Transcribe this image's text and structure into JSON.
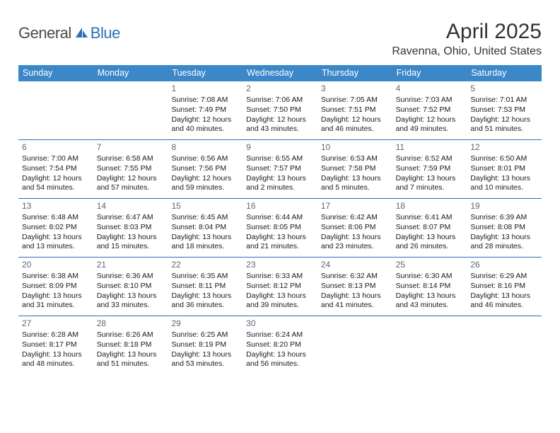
{
  "brand": {
    "text1": "General",
    "text2": "Blue"
  },
  "title": "April 2025",
  "location": "Ravenna, Ohio, United States",
  "header_bg": "#3b87c8",
  "rule_color": "#2d6fb7",
  "day_names": [
    "Sunday",
    "Monday",
    "Tuesday",
    "Wednesday",
    "Thursday",
    "Friday",
    "Saturday"
  ],
  "weeks": [
    [
      null,
      null,
      {
        "n": "1",
        "sr": "7:08 AM",
        "ss": "7:49 PM",
        "dl": "12 hours and 40 minutes."
      },
      {
        "n": "2",
        "sr": "7:06 AM",
        "ss": "7:50 PM",
        "dl": "12 hours and 43 minutes."
      },
      {
        "n": "3",
        "sr": "7:05 AM",
        "ss": "7:51 PM",
        "dl": "12 hours and 46 minutes."
      },
      {
        "n": "4",
        "sr": "7:03 AM",
        "ss": "7:52 PM",
        "dl": "12 hours and 49 minutes."
      },
      {
        "n": "5",
        "sr": "7:01 AM",
        "ss": "7:53 PM",
        "dl": "12 hours and 51 minutes."
      }
    ],
    [
      {
        "n": "6",
        "sr": "7:00 AM",
        "ss": "7:54 PM",
        "dl": "12 hours and 54 minutes."
      },
      {
        "n": "7",
        "sr": "6:58 AM",
        "ss": "7:55 PM",
        "dl": "12 hours and 57 minutes."
      },
      {
        "n": "8",
        "sr": "6:56 AM",
        "ss": "7:56 PM",
        "dl": "12 hours and 59 minutes."
      },
      {
        "n": "9",
        "sr": "6:55 AM",
        "ss": "7:57 PM",
        "dl": "13 hours and 2 minutes."
      },
      {
        "n": "10",
        "sr": "6:53 AM",
        "ss": "7:58 PM",
        "dl": "13 hours and 5 minutes."
      },
      {
        "n": "11",
        "sr": "6:52 AM",
        "ss": "7:59 PM",
        "dl": "13 hours and 7 minutes."
      },
      {
        "n": "12",
        "sr": "6:50 AM",
        "ss": "8:01 PM",
        "dl": "13 hours and 10 minutes."
      }
    ],
    [
      {
        "n": "13",
        "sr": "6:48 AM",
        "ss": "8:02 PM",
        "dl": "13 hours and 13 minutes."
      },
      {
        "n": "14",
        "sr": "6:47 AM",
        "ss": "8:03 PM",
        "dl": "13 hours and 15 minutes."
      },
      {
        "n": "15",
        "sr": "6:45 AM",
        "ss": "8:04 PM",
        "dl": "13 hours and 18 minutes."
      },
      {
        "n": "16",
        "sr": "6:44 AM",
        "ss": "8:05 PM",
        "dl": "13 hours and 21 minutes."
      },
      {
        "n": "17",
        "sr": "6:42 AM",
        "ss": "8:06 PM",
        "dl": "13 hours and 23 minutes."
      },
      {
        "n": "18",
        "sr": "6:41 AM",
        "ss": "8:07 PM",
        "dl": "13 hours and 26 minutes."
      },
      {
        "n": "19",
        "sr": "6:39 AM",
        "ss": "8:08 PM",
        "dl": "13 hours and 28 minutes."
      }
    ],
    [
      {
        "n": "20",
        "sr": "6:38 AM",
        "ss": "8:09 PM",
        "dl": "13 hours and 31 minutes."
      },
      {
        "n": "21",
        "sr": "6:36 AM",
        "ss": "8:10 PM",
        "dl": "13 hours and 33 minutes."
      },
      {
        "n": "22",
        "sr": "6:35 AM",
        "ss": "8:11 PM",
        "dl": "13 hours and 36 minutes."
      },
      {
        "n": "23",
        "sr": "6:33 AM",
        "ss": "8:12 PM",
        "dl": "13 hours and 39 minutes."
      },
      {
        "n": "24",
        "sr": "6:32 AM",
        "ss": "8:13 PM",
        "dl": "13 hours and 41 minutes."
      },
      {
        "n": "25",
        "sr": "6:30 AM",
        "ss": "8:14 PM",
        "dl": "13 hours and 43 minutes."
      },
      {
        "n": "26",
        "sr": "6:29 AM",
        "ss": "8:16 PM",
        "dl": "13 hours and 46 minutes."
      }
    ],
    [
      {
        "n": "27",
        "sr": "6:28 AM",
        "ss": "8:17 PM",
        "dl": "13 hours and 48 minutes."
      },
      {
        "n": "28",
        "sr": "6:26 AM",
        "ss": "8:18 PM",
        "dl": "13 hours and 51 minutes."
      },
      {
        "n": "29",
        "sr": "6:25 AM",
        "ss": "8:19 PM",
        "dl": "13 hours and 53 minutes."
      },
      {
        "n": "30",
        "sr": "6:24 AM",
        "ss": "8:20 PM",
        "dl": "13 hours and 56 minutes."
      },
      null,
      null,
      null
    ]
  ],
  "labels": {
    "sunrise": "Sunrise:",
    "sunset": "Sunset:",
    "daylight": "Daylight:"
  }
}
